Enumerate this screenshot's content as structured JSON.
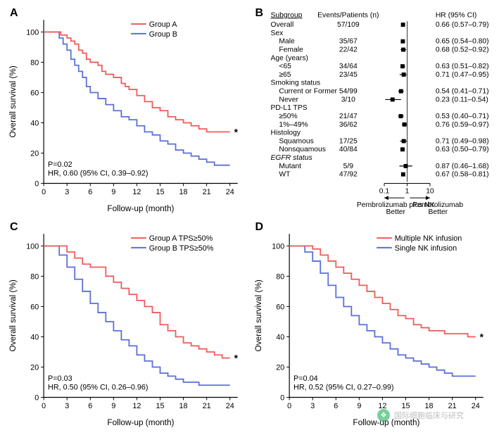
{
  "panels": {
    "A": "A",
    "B": "B",
    "C": "C",
    "D": "D"
  },
  "km": {
    "axes": {
      "y_title": "Overall survival (%)",
      "x_title": "Follow-up (month)",
      "y_ticks": [
        0,
        20,
        40,
        60,
        80,
        100
      ],
      "x_ticks": [
        0,
        3,
        6,
        9,
        12,
        15,
        18,
        21,
        24
      ],
      "ylim": [
        0,
        108
      ],
      "xlim": [
        0,
        25
      ]
    },
    "A": {
      "legend_a": "Group A",
      "legend_b": "Group B",
      "stats": [
        "P=0.02",
        "HR, 0.60 (95% CI, 0.39–0.92)"
      ],
      "series_a": [
        [
          0,
          100
        ],
        [
          1.5,
          100
        ],
        [
          2.2,
          98
        ],
        [
          3,
          96
        ],
        [
          3.5,
          94
        ],
        [
          4,
          92
        ],
        [
          4.5,
          88
        ],
        [
          5,
          86
        ],
        [
          5.5,
          82
        ],
        [
          6,
          80
        ],
        [
          7,
          78
        ],
        [
          7.5,
          74
        ],
        [
          8,
          72
        ],
        [
          9,
          70
        ],
        [
          10,
          66
        ],
        [
          10.5,
          64
        ],
        [
          11,
          62
        ],
        [
          12,
          58
        ],
        [
          13,
          54
        ],
        [
          14,
          50
        ],
        [
          15,
          48
        ],
        [
          16,
          44
        ],
        [
          17,
          42
        ],
        [
          18,
          40
        ],
        [
          19,
          38
        ],
        [
          20,
          36
        ],
        [
          21,
          34
        ],
        [
          22,
          34
        ],
        [
          23,
          34
        ],
        [
          24,
          34
        ]
      ],
      "series_b": [
        [
          0,
          100
        ],
        [
          1.5,
          100
        ],
        [
          2,
          96
        ],
        [
          2.5,
          92
        ],
        [
          3,
          88
        ],
        [
          3.5,
          82
        ],
        [
          4,
          78
        ],
        [
          4.5,
          74
        ],
        [
          5,
          70
        ],
        [
          5.5,
          64
        ],
        [
          6,
          60
        ],
        [
          7,
          56
        ],
        [
          8,
          52
        ],
        [
          9,
          48
        ],
        [
          10,
          44
        ],
        [
          11,
          42
        ],
        [
          12,
          38
        ],
        [
          13,
          34
        ],
        [
          14,
          32
        ],
        [
          15,
          28
        ],
        [
          16,
          26
        ],
        [
          17,
          22
        ],
        [
          18,
          20
        ],
        [
          19,
          18
        ],
        [
          20,
          16
        ],
        [
          21,
          14
        ],
        [
          22,
          12
        ],
        [
          23,
          12
        ],
        [
          24,
          12
        ]
      ]
    },
    "C": {
      "legend_a": "Group A TPS≥50%",
      "legend_b": "Group B TPS≥50%",
      "stats": [
        "P=0.03",
        "HR, 0.50 (95% CI, 0.26–0.96)"
      ],
      "series_a": [
        [
          0,
          100
        ],
        [
          2.5,
          100
        ],
        [
          3,
          96
        ],
        [
          4,
          92
        ],
        [
          5,
          88
        ],
        [
          6,
          86
        ],
        [
          7,
          86
        ],
        [
          8,
          80
        ],
        [
          9,
          76
        ],
        [
          10,
          72
        ],
        [
          11,
          68
        ],
        [
          12,
          64
        ],
        [
          13,
          60
        ],
        [
          14,
          56
        ],
        [
          15,
          48
        ],
        [
          16,
          44
        ],
        [
          17,
          40
        ],
        [
          18,
          36
        ],
        [
          19,
          34
        ],
        [
          20,
          32
        ],
        [
          21,
          30
        ],
        [
          22,
          28
        ],
        [
          23,
          26
        ],
        [
          24,
          26
        ]
      ],
      "series_b": [
        [
          0,
          100
        ],
        [
          1.5,
          100
        ],
        [
          2,
          94
        ],
        [
          3,
          86
        ],
        [
          4,
          78
        ],
        [
          5,
          70
        ],
        [
          6,
          62
        ],
        [
          7,
          56
        ],
        [
          8,
          50
        ],
        [
          9,
          44
        ],
        [
          10,
          38
        ],
        [
          11,
          34
        ],
        [
          12,
          28
        ],
        [
          13,
          24
        ],
        [
          14,
          20
        ],
        [
          15,
          16
        ],
        [
          16,
          14
        ],
        [
          17,
          12
        ],
        [
          18,
          10
        ],
        [
          19,
          10
        ],
        [
          20,
          8
        ],
        [
          21,
          8
        ],
        [
          22,
          8
        ],
        [
          23,
          8
        ],
        [
          24,
          8
        ]
      ]
    },
    "D": {
      "legend_a": "Multiple NK infusion",
      "legend_b": "Single NK infusion",
      "stats": [
        "P=0.04",
        "HR, 0.52 (95% CI, 0.27–0.99)"
      ],
      "series_a": [
        [
          0,
          100
        ],
        [
          2,
          100
        ],
        [
          3,
          98
        ],
        [
          4,
          94
        ],
        [
          5,
          90
        ],
        [
          6,
          86
        ],
        [
          7,
          82
        ],
        [
          8,
          78
        ],
        [
          9,
          74
        ],
        [
          10,
          70
        ],
        [
          11,
          66
        ],
        [
          12,
          62
        ],
        [
          13,
          58
        ],
        [
          14,
          54
        ],
        [
          15,
          52
        ],
        [
          16,
          48
        ],
        [
          17,
          46
        ],
        [
          18,
          44
        ],
        [
          19,
          44
        ],
        [
          20,
          42
        ],
        [
          21,
          42
        ],
        [
          22,
          42
        ],
        [
          23,
          40
        ],
        [
          24,
          40
        ]
      ],
      "series_b": [
        [
          0,
          100
        ],
        [
          1.5,
          100
        ],
        [
          2,
          96
        ],
        [
          3,
          90
        ],
        [
          4,
          82
        ],
        [
          5,
          74
        ],
        [
          6,
          66
        ],
        [
          7,
          60
        ],
        [
          8,
          54
        ],
        [
          9,
          48
        ],
        [
          10,
          44
        ],
        [
          11,
          40
        ],
        [
          12,
          36
        ],
        [
          13,
          32
        ],
        [
          14,
          28
        ],
        [
          15,
          26
        ],
        [
          16,
          24
        ],
        [
          17,
          22
        ],
        [
          18,
          20
        ],
        [
          19,
          18
        ],
        [
          20,
          16
        ],
        [
          21,
          14
        ],
        [
          22,
          14
        ],
        [
          23,
          14
        ],
        [
          24,
          14
        ]
      ]
    }
  },
  "forest": {
    "headers": {
      "subgroup": "Subgroup",
      "events": "Events/Patients (n)",
      "hr": "HR (95% CI)"
    },
    "axis_ticks": [
      0.1,
      1,
      10
    ],
    "arrows": {
      "left": "Pembrolizumab plus NK\nBetter",
      "right": "Pembrolizumab\nBetter"
    },
    "rows": [
      {
        "label": "Overall",
        "indent": 0,
        "events": "57/109",
        "hr": 0.66,
        "lo": 0.57,
        "hi": 0.79,
        "txt": "0.66 (0.57–0.79)"
      },
      {
        "label": "Sex",
        "indent": 0
      },
      {
        "label": "Male",
        "indent": 1,
        "events": "35/67",
        "hr": 0.65,
        "lo": 0.54,
        "hi": 0.8,
        "txt": "0.65 (0.54–0.80)"
      },
      {
        "label": "Female",
        "indent": 1,
        "events": "22/42",
        "hr": 0.68,
        "lo": 0.52,
        "hi": 0.92,
        "txt": "0.68 (0.52–0.92)"
      },
      {
        "label": "Age (years)",
        "indent": 0
      },
      {
        "label": "<65",
        "indent": 1,
        "events": "34/64",
        "hr": 0.63,
        "lo": 0.51,
        "hi": 0.82,
        "txt": "0.63 (0.51–0.82)"
      },
      {
        "label": "≥65",
        "indent": 1,
        "events": "23/45",
        "hr": 0.71,
        "lo": 0.47,
        "hi": 0.95,
        "txt": "0.71 (0.47–0.95)"
      },
      {
        "label": "Smoking status",
        "indent": 0
      },
      {
        "label": "Current or Former",
        "indent": 1,
        "events": "54/99",
        "hr": 0.54,
        "lo": 0.41,
        "hi": 0.71,
        "txt": "0.54 (0.41–0.71)"
      },
      {
        "label": "Never",
        "indent": 1,
        "events": "3/10",
        "hr": 0.23,
        "lo": 0.11,
        "hi": 0.54,
        "txt": "0.23 (0.11–0.54)"
      },
      {
        "label": "PD-L1 TPS",
        "indent": 0
      },
      {
        "label": "≥50%",
        "indent": 1,
        "events": "21/47",
        "hr": 0.53,
        "lo": 0.4,
        "hi": 0.71,
        "txt": "0.53 (0.40–0.71)"
      },
      {
        "label": "1%–49%",
        "indent": 1,
        "events": "36/62",
        "hr": 0.76,
        "lo": 0.59,
        "hi": 0.97,
        "txt": "0.76 (0.59–0.97)"
      },
      {
        "label": "Histology",
        "indent": 0
      },
      {
        "label": "Squamous",
        "indent": 1,
        "events": "17/25",
        "hr": 0.71,
        "lo": 0.49,
        "hi": 0.98,
        "txt": "0.71 (0.49–0.98)"
      },
      {
        "label": "Nonsquamous",
        "indent": 1,
        "events": "40/84",
        "hr": 0.63,
        "lo": 0.5,
        "hi": 0.79,
        "txt": "0.63 (0.50–0.79)"
      },
      {
        "label": "EGFR status",
        "indent": 0,
        "italic": true
      },
      {
        "label": "Mutant",
        "indent": 1,
        "events": "5/9",
        "hr": 0.87,
        "lo": 0.46,
        "hi": 1.68,
        "txt": "0.87 (0.46–1.68)"
      },
      {
        "label": "WT",
        "indent": 1,
        "events": "47/92",
        "hr": 0.67,
        "lo": 0.58,
        "hi": 0.81,
        "txt": "0.67 (0.58–0.81)"
      }
    ]
  },
  "colors": {
    "group_a": "#f05a5a",
    "group_b": "#5a6fd8",
    "axis": "#000000",
    "bg": "#ffffff"
  },
  "watermark": "国际细胞临床与研究"
}
